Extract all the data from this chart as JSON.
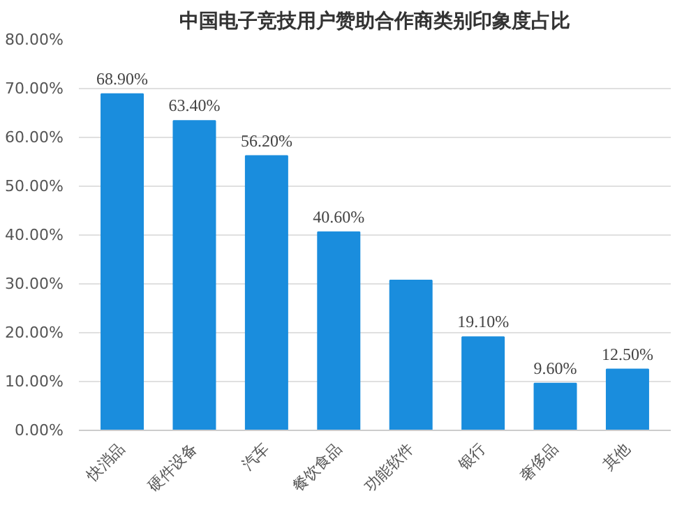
{
  "chart_data": {
    "type": "bar",
    "title": "中国电子竞技用户赞助合作商类别印象度占比",
    "categories": [
      "快消品",
      "硬件设备",
      "汽车",
      "餐饮食品",
      "功能软件",
      "银行",
      "奢侈品",
      "其他"
    ],
    "values": [
      68.9,
      63.4,
      56.2,
      40.6,
      30.7,
      19.1,
      9.6,
      12.5
    ],
    "value_labels": [
      "68.90%",
      "63.40%",
      "56.20%",
      "40.60%",
      null,
      "19.10%",
      "9.60%",
      "12.50%"
    ],
    "color": "#1a8ddd",
    "ylim": [
      0,
      80
    ],
    "yticks": [
      {
        "value": 0,
        "label": "0.00%"
      },
      {
        "value": 10,
        "label": "10.00%"
      },
      {
        "value": 20,
        "label": "20.00%"
      },
      {
        "value": 30,
        "label": "30.00%"
      },
      {
        "value": 40,
        "label": "40.00%"
      },
      {
        "value": 50,
        "label": "50.00%"
      },
      {
        "value": 60,
        "label": "60.00%"
      },
      {
        "value": 70,
        "label": "70.00%"
      },
      {
        "value": 80,
        "label": "80.00%"
      }
    ],
    "grid": "y"
  }
}
